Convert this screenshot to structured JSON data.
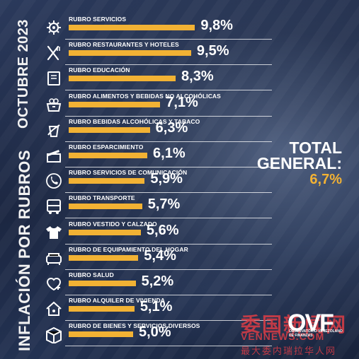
{
  "title_vertical": "INFLACIÓN POR RUBROS",
  "date_vertical": "OCTUBRE 2023",
  "total": {
    "label": "TOTAL\nGENERAL:",
    "value": "6,7%"
  },
  "logo": {
    "text": "OVF",
    "subtitle": "OBSERVATORIO VENEZOLANO DE FINANZAS"
  },
  "watermark": {
    "cn": "委国新闻网",
    "url": "VENNEWS.COM",
    "sub": "最大委内瑞拉华人网"
  },
  "colors": {
    "bar": "#f2b234",
    "text": "#ffffff",
    "total_value": "#f2b234",
    "background": "#1f2a43"
  },
  "chart_data": {
    "type": "bar",
    "orientation": "horizontal",
    "unit": "%",
    "categories": [
      "RUBRO SERVICIOS",
      "RUBRO RESTAURANTES Y HOTELES",
      "RUBRO EDUCACIÓN",
      "RUBRO ALIMENTOS Y BEBIDAS NO ALCOHÓLICAS",
      "RUBRO BEBIDAS ALCOHÓLICAS Y TABACO",
      "RUBRO ESPARCIMIENTO",
      "RUBRO SERVICIOS DE COMUNICACIÓN",
      "RUBRO TRANSPORTE",
      "RUBRO VESTIDO Y CALZADO",
      "RUBRO DE EQUIPAMIENTO DEL HOGAR",
      "RUBRO SALUD",
      "RUBRO ALQUILER DE VIVIENDA",
      "RUBRO DE BIENES Y SERVICIOS DIVERSOS"
    ],
    "values": [
      9.8,
      9.5,
      8.3,
      7.1,
      6.3,
      6.1,
      5.9,
      5.7,
      5.6,
      5.4,
      5.2,
      5.1,
      5.0
    ],
    "value_labels": [
      "9,8%",
      "9,5%",
      "8,3%",
      "7,1%",
      "6,3%",
      "6,1%",
      "5,9%",
      "5,7%",
      "5,6%",
      "5,4%",
      "5,2%",
      "5,1%",
      "5,0%"
    ],
    "icons": [
      "gear-icon",
      "utensils-icon",
      "book-icon",
      "food-basket-icon",
      "beverage-icon",
      "clapperboard-icon",
      "phone-icon",
      "bus-icon",
      "shirt-icon",
      "sofa-icon",
      "heart-plus-icon",
      "house-key-icon",
      "box-icon"
    ],
    "xlim": [
      0,
      10
    ],
    "grid": false,
    "legend": "none"
  }
}
